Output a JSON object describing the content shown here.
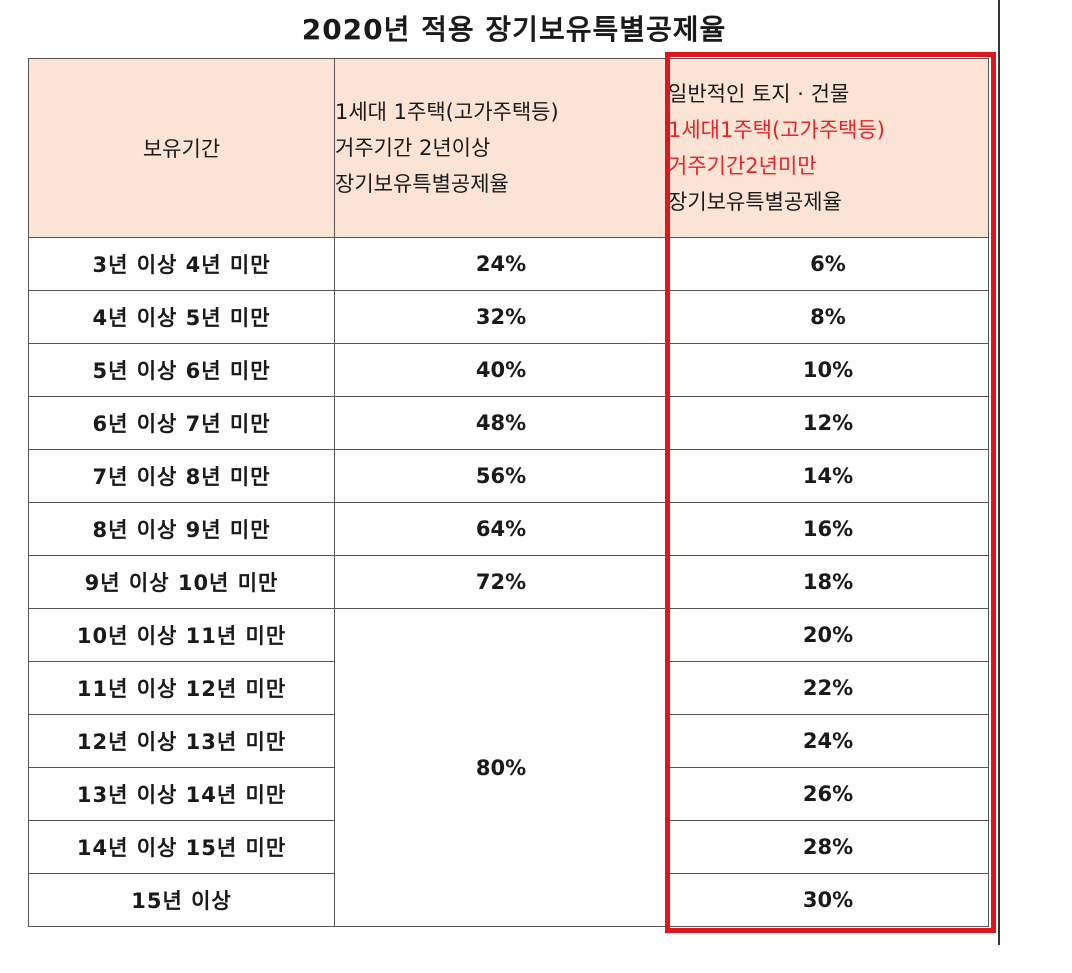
{
  "title": "2020년 적용 장기보유특별공제율",
  "headers": {
    "period": "보유기간",
    "col2": [
      "1세대 1주택(고가주택등)",
      "거주기간 2년이상",
      "장기보유특별공제율"
    ],
    "col3_line1": "일반적인 토지 · 건물",
    "col3_red": [
      "1세대1주택(고가주택등)",
      "거주기간2년미만"
    ],
    "col3_line4": "장기보유특별공제율"
  },
  "rows": [
    {
      "period": "3년 이상 4년 미만",
      "rate1": "24%",
      "rate2": "6%"
    },
    {
      "period": "4년 이상 5년 미만",
      "rate1": "32%",
      "rate2": "8%"
    },
    {
      "period": "5년 이상 6년 미만",
      "rate1": "40%",
      "rate2": "10%"
    },
    {
      "period": "6년 이상 7년 미만",
      "rate1": "48%",
      "rate2": "12%"
    },
    {
      "period": "7년 이상 8년 미만",
      "rate1": "56%",
      "rate2": "14%"
    },
    {
      "period": "8년 이상 9년 미만",
      "rate1": "64%",
      "rate2": "16%"
    },
    {
      "period": "9년 이상 10년 미만",
      "rate1": "72%",
      "rate2": "18%"
    },
    {
      "period": "10년 이상 11년 미만",
      "rate1": "80%",
      "rate2": "20%"
    },
    {
      "period": "11년 이상 12년 미만",
      "rate2": "22%"
    },
    {
      "period": "12년 이상 13년 미만",
      "rate2": "24%"
    },
    {
      "period": "13년 이상 14년 미만",
      "rate2": "26%"
    },
    {
      "period": "14년 이상 15년 미만",
      "rate2": "28%"
    },
    {
      "period": "15년 이상",
      "rate2": "30%"
    }
  ],
  "colors": {
    "header_bg": "#fbe4d5",
    "highlight": "#e0161f",
    "red_text": "#e8242b"
  }
}
